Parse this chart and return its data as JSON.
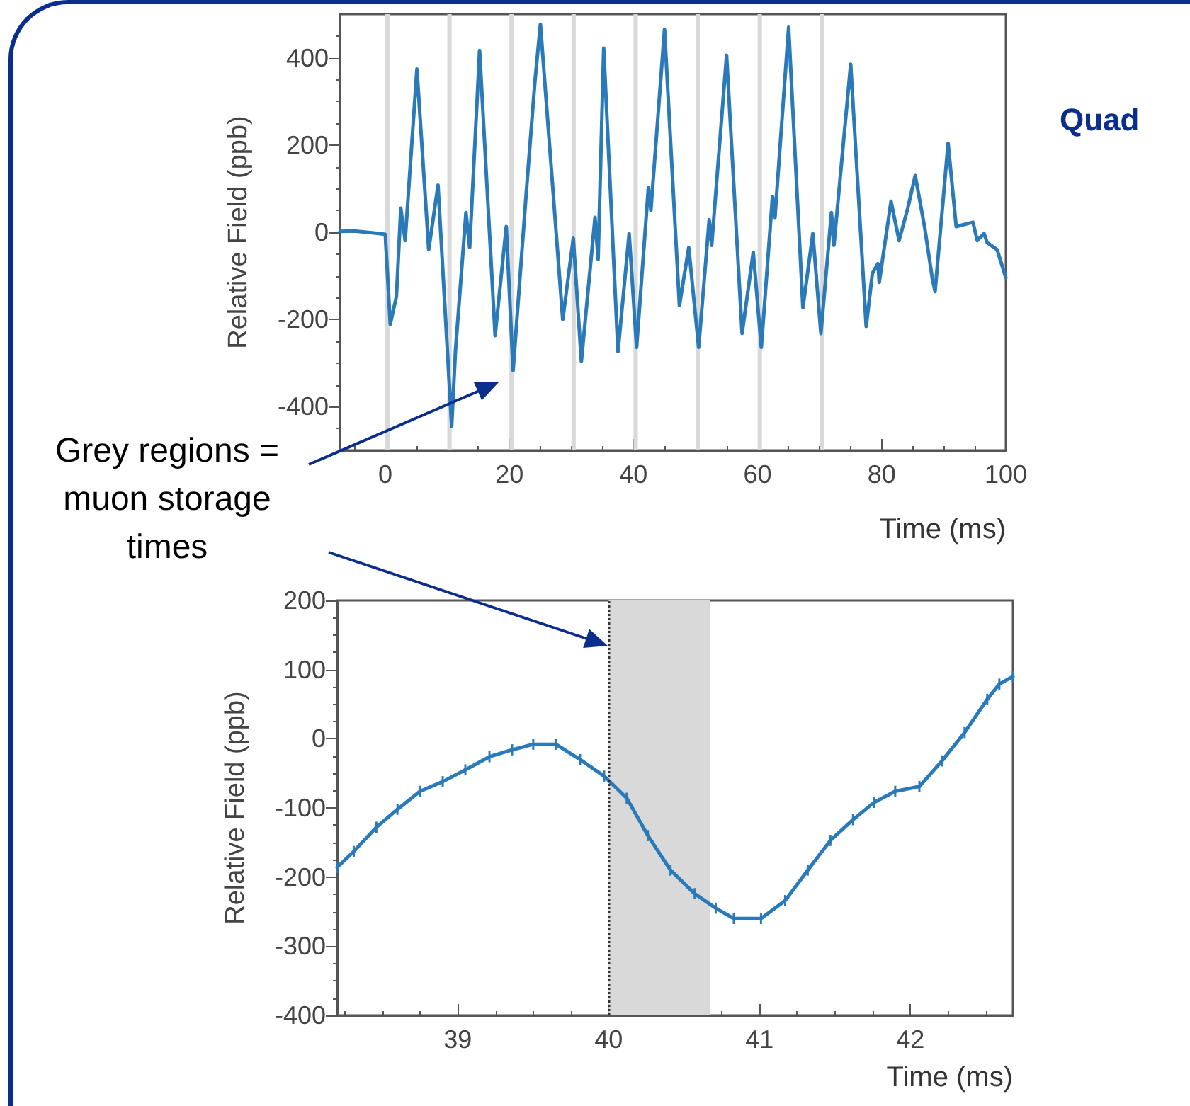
{
  "chart_data": [
    {
      "type": "line",
      "xlabel": "Time (ms)",
      "ylabel": "Relative Field (ppb)",
      "xlim": [
        -7.3,
        100
      ],
      "xticks": [
        0,
        20,
        40,
        60,
        80,
        100
      ],
      "ylim": [
        -500,
        500
      ],
      "yticks": [
        -400,
        -200,
        0,
        200,
        400
      ],
      "marker": "none",
      "line_style": "solid",
      "annotations": [
        "Quad",
        "Grey regions = muon storage times"
      ],
      "bands": [
        {
          "axis": "x",
          "from": 0,
          "to": 0.7,
          "color": "#d9d9d9"
        },
        {
          "axis": "x",
          "from": 10,
          "to": 10.7,
          "color": "#d9d9d9"
        },
        {
          "axis": "x",
          "from": 20,
          "to": 20.7,
          "color": "#d9d9d9"
        },
        {
          "axis": "x",
          "from": 30,
          "to": 30.7,
          "color": "#d9d9d9"
        },
        {
          "axis": "x",
          "from": 40,
          "to": 40.7,
          "color": "#d9d9d9"
        },
        {
          "axis": "x",
          "from": 50,
          "to": 50.7,
          "color": "#d9d9d9"
        },
        {
          "axis": "x",
          "from": 60,
          "to": 60.7,
          "color": "#d9d9d9"
        },
        {
          "axis": "x",
          "from": 70,
          "to": 70.7,
          "color": "#d9d9d9"
        }
      ],
      "series": [
        {
          "color": "#2a7ab9",
          "x": [
            -7.3,
            -5,
            -3,
            -1,
            0,
            0.8,
            1.8,
            2.5,
            3.2,
            5.1,
            7.0,
            8.5,
            10.7,
            11.3,
            13.0,
            13.6,
            15.2,
            17.7,
            19.5,
            20.6,
            22.7,
            24.1,
            25.0,
            28.6,
            30.3,
            31.6,
            33.8,
            34.3,
            35.2,
            37.5,
            39.3,
            40.5,
            42.4,
            42.8,
            45.0,
            47.4,
            48.9,
            50.5,
            52.2,
            52.6,
            55.0,
            57.5,
            59.3,
            60.6,
            62.4,
            62.8,
            65.0,
            67.3,
            68.9,
            70.2,
            71.9,
            72.3,
            75.0,
            77.5,
            78.5,
            79.4,
            79.6,
            81.5,
            82.8,
            84.2,
            85.4,
            86.9,
            88.2,
            88.6,
            90.7,
            92.0,
            94.7,
            95.4,
            96.5,
            97.0,
            98.6,
            100
          ],
          "values": [
            2,
            3,
            0,
            -3,
            -5,
            -211,
            -147,
            55,
            -19,
            374,
            -40,
            108,
            -445,
            -274,
            45,
            -35,
            417,
            -237,
            13,
            -317,
            87,
            343,
            477,
            -200,
            -14,
            -296,
            34,
            -62,
            422,
            -274,
            -3,
            -264,
            103,
            50,
            465,
            -168,
            -35,
            -264,
            29,
            -30,
            406,
            -232,
            -46,
            -264,
            82,
            34,
            470,
            -173,
            -3,
            -232,
            45,
            -30,
            385,
            -216,
            -94,
            -72,
            -115,
            71,
            -19,
            55,
            130,
            13,
            -110,
            -136,
            204,
            13,
            23,
            -19,
            -3,
            -24,
            -40,
            -104
          ]
        }
      ]
    },
    {
      "type": "line",
      "xlabel": "Time (ms)",
      "ylabel": "Relative Field (ppb)",
      "xlim": [
        38.2,
        42.68
      ],
      "xticks": [
        39,
        40,
        41,
        42
      ],
      "ylim": [
        -400,
        200
      ],
      "yticks": [
        -400,
        -300,
        -200,
        -100,
        0,
        100,
        200
      ],
      "marker": "none",
      "line_style": "solid",
      "bands": [
        {
          "axis": "x",
          "from": 40,
          "to": 40.67,
          "color": "#d9d9d9"
        }
      ],
      "ref_lines": [
        {
          "axis": "x",
          "value": 40,
          "color": "#333333",
          "line_style": "dotted"
        }
      ],
      "series": [
        {
          "color": "#2a7ab9",
          "x": [
            38.2,
            38.31,
            38.46,
            38.6,
            38.75,
            38.9,
            39.05,
            39.21,
            39.36,
            39.5,
            39.65,
            39.81,
            39.97,
            40.12,
            40.26,
            40.41,
            40.57,
            40.71,
            40.83,
            41.01,
            41.17,
            41.32,
            41.47,
            41.62,
            41.76,
            41.9,
            42.06,
            42.21,
            42.36,
            42.51,
            42.59,
            42.68
          ],
          "values": [
            -186,
            -163,
            -128,
            -102,
            -76,
            -62,
            -45,
            -26,
            -16,
            -8,
            -8,
            -30,
            -54,
            -86,
            -140,
            -190,
            -224,
            -245,
            -260,
            -260,
            -234,
            -190,
            -147,
            -117,
            -92,
            -76,
            -69,
            -32,
            9,
            57,
            79,
            90
          ],
          "errors": [
            8,
            8,
            8,
            8,
            8,
            8,
            8,
            8,
            8,
            8,
            8,
            8,
            8,
            8,
            8,
            8,
            8,
            8,
            8,
            8,
            8,
            8,
            8,
            8,
            8,
            8,
            8,
            8,
            8,
            8,
            8,
            8
          ]
        }
      ]
    }
  ]
}
